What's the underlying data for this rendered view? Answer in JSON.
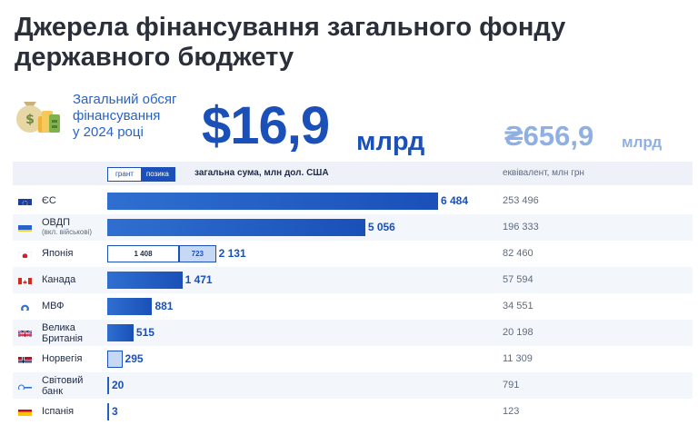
{
  "title_line1": "Джерела фінансування загального фонду",
  "title_line2": "державного бюджету",
  "summary": {
    "label_line1": "Загальний обсяг",
    "label_line2": "фінансування",
    "label_line3": "у 2024 році",
    "usd_value": "$16,9",
    "usd_unit": "млрд",
    "uah_value": "₴656,9",
    "uah_unit": "млрд"
  },
  "table_header": {
    "legend_grant": "грант",
    "legend_loan": "позика",
    "usd_column": "загальна сума, млн дол. США",
    "uah_column": "еквівалент, млн грн"
  },
  "colors": {
    "accent": "#1a50b8",
    "accent_light": "#c7d8f5",
    "muted": "#8fb0e4"
  },
  "chart_data": {
    "type": "bar",
    "orientation": "horizontal",
    "xlabel": "загальна сума, млн дол. США",
    "categories": [
      "ЄС",
      "ОВДП",
      "Японія",
      "Канада",
      "МВФ",
      "Велика Британія",
      "Норвегія",
      "Світовий банк",
      "Іспанія"
    ],
    "values": [
      6484,
      5056,
      2131,
      1471,
      881,
      515,
      295,
      20,
      3
    ],
    "value_labels": [
      "6 484",
      "5 056",
      "2 131",
      "1 471",
      "881",
      "515",
      "295",
      "20",
      "3"
    ],
    "uah_equivalent": [
      "253 496",
      "196 333",
      "82 460",
      "57 594",
      "34 551",
      "20 198",
      "11 309",
      "791",
      "123"
    ],
    "split": {
      "Японія": [
        {
          "name": "грант",
          "value": 1408,
          "label": "1 408"
        },
        {
          "name": "позика",
          "value": 723,
          "label": "723"
        }
      ]
    },
    "xlim": [
      0,
      6484
    ],
    "rows": [
      {
        "flag": "eu-flag",
        "name_line1": "ЄС",
        "name_line2": "",
        "style": "loan"
      },
      {
        "flag": "ukraine-flag",
        "name_line1": "ОВДП",
        "name_line2": "(вкл. військові)",
        "style": "loan"
      },
      {
        "flag": "japan-flag",
        "name_line1": "Японія",
        "name_line2": "",
        "style": "split"
      },
      {
        "flag": "canada-flag",
        "name_line1": "Канада",
        "name_line2": "",
        "style": "loan"
      },
      {
        "flag": "imf-logo",
        "name_line1": "МВФ",
        "name_line2": "",
        "style": "loan"
      },
      {
        "flag": "uk-flag",
        "name_line1": "Велика",
        "name_line2": "Британія",
        "style": "loan"
      },
      {
        "flag": "norway-flag",
        "name_line1": "Норвегія",
        "name_line2": "",
        "style": "grant"
      },
      {
        "flag": "world-bank-logo",
        "name_line1": "Світовий",
        "name_line2": "банк",
        "style": "loan"
      },
      {
        "flag": "spain-flag",
        "name_line1": "Іспанія",
        "name_line2": "",
        "style": "loan"
      }
    ]
  }
}
